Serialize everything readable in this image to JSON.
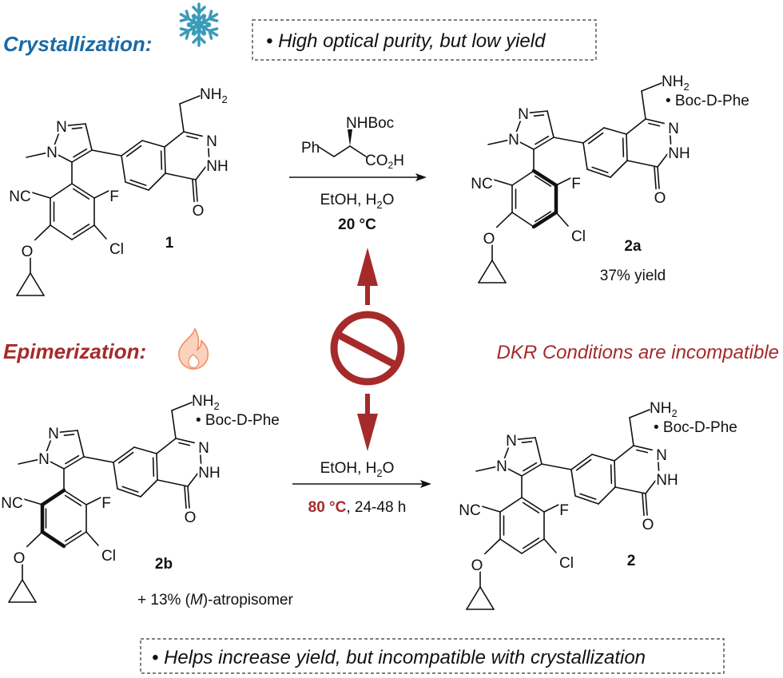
{
  "colors": {
    "blue": "#1a6aa6",
    "red": "#a62a2a",
    "snowflake": "#3b9bb8",
    "flame": "#f4a07a"
  },
  "top": {
    "heading": "Crystallization:",
    "icon": "snowflake-icon",
    "note": "• High optical purity, but low yield"
  },
  "middle": {
    "heading": "Epimerization:",
    "icon": "flame-icon",
    "incompatible": "DKR Conditions are incompatible",
    "center_icon": "prohibited-icon"
  },
  "bottom": {
    "note": "• Helps increase yield, but incompatible with crystallization"
  },
  "atoms": {
    "n1": "N",
    "n2": "N",
    "nc": "NC",
    "f": "F",
    "cl": "Cl",
    "o_ether": "O",
    "o_carbonyl": "O",
    "n_ring": "N",
    "nh": "NH",
    "nh2": "NH",
    "nh2_sub": "2"
  },
  "salt": "• Boc-D-Phe",
  "compounds": {
    "c1": {
      "label": "1"
    },
    "c2a": {
      "label": "2a",
      "yield": "37% yield"
    },
    "c2b": {
      "label": "2b",
      "note_pre": "+ 13% (",
      "note_italic": "M",
      "note_post": ")-atropisomer"
    },
    "c2": {
      "label": "2"
    }
  },
  "reaction1": {
    "reagent": {
      "ph": "Ph",
      "nhboc": "NHBoc",
      "co2h_a": "CO",
      "co2h_sub": "2",
      "co2h_b": "H"
    },
    "solvent_a": "EtOH, H",
    "solvent_sub": "2",
    "solvent_b": "O",
    "temp": "20 °C"
  },
  "reaction2": {
    "solvent_a": "EtOH, H",
    "solvent_sub": "2",
    "solvent_b": "O",
    "temp": "80 °C",
    "time": ", 24-48 h"
  }
}
